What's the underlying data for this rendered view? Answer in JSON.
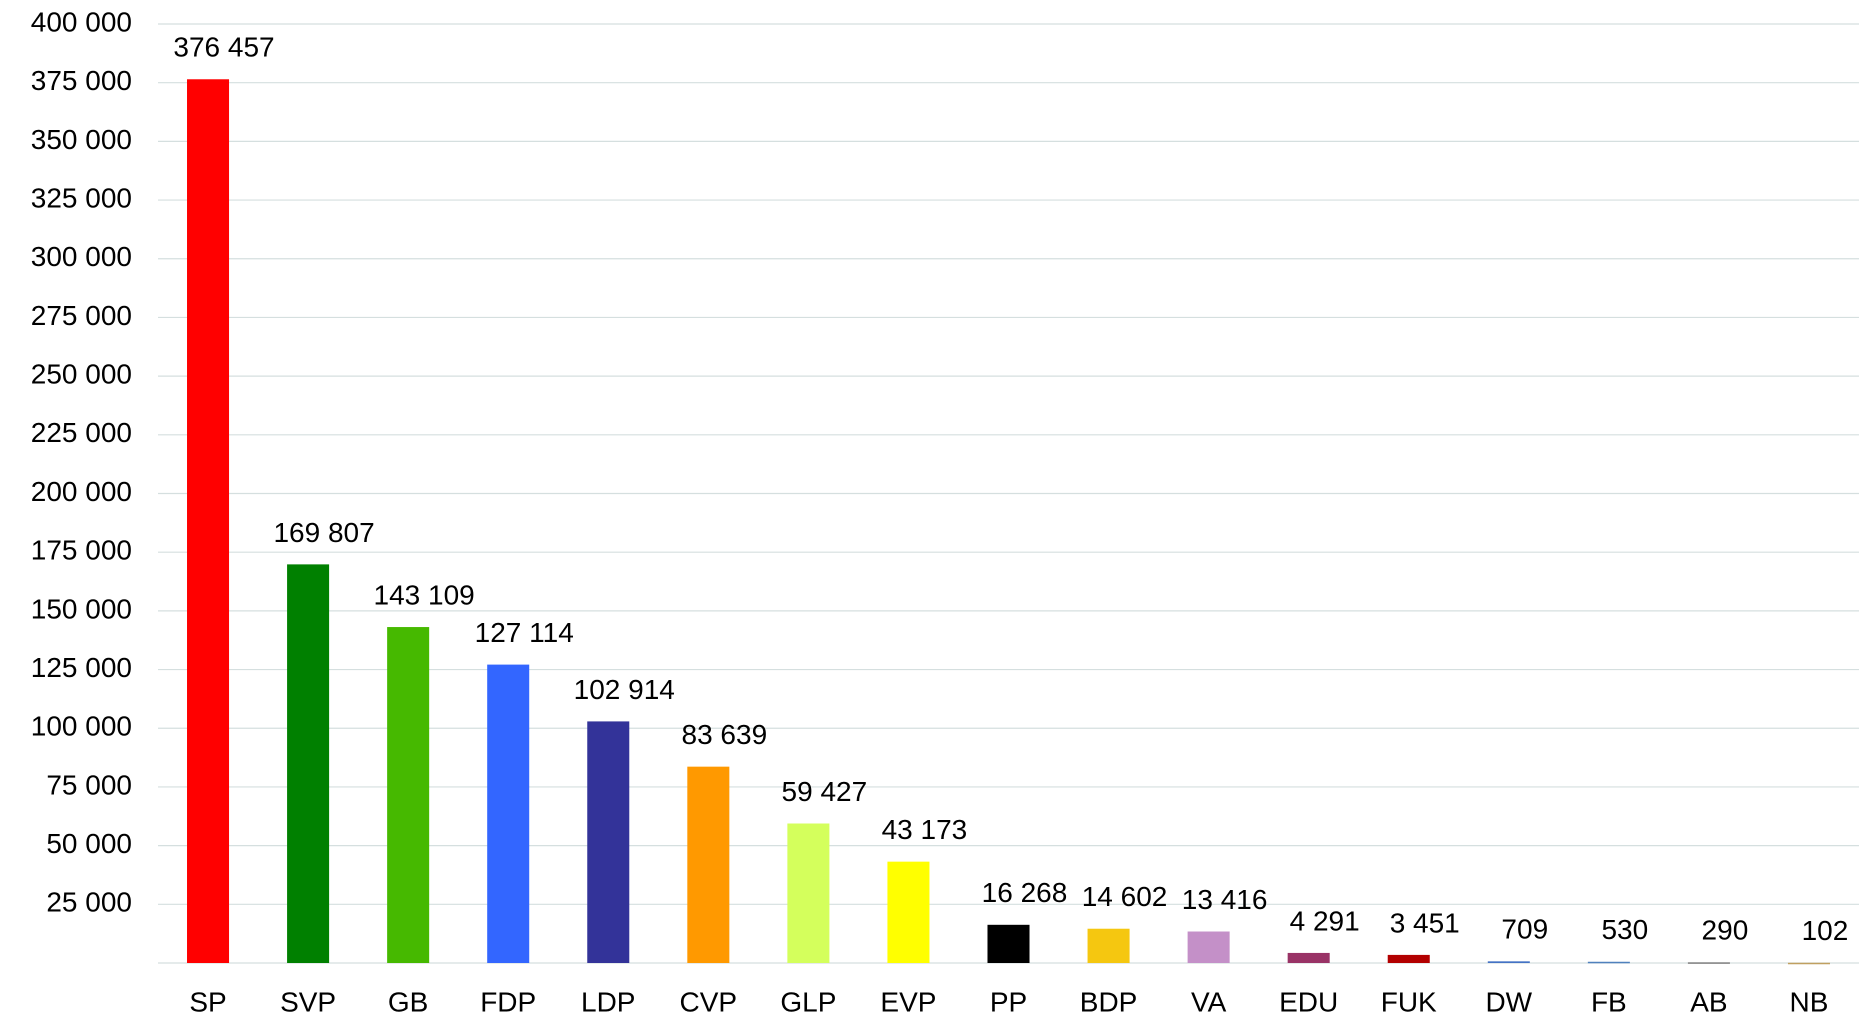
{
  "chart_data": {
    "type": "bar",
    "categories": [
      "SP",
      "SVP",
      "GB",
      "FDP",
      "LDP",
      "CVP",
      "GLP",
      "EVP",
      "PP",
      "BDP",
      "VA",
      "EDU",
      "FUK",
      "DW",
      "FB",
      "AB",
      "NB"
    ],
    "values": [
      376457,
      169807,
      143109,
      127114,
      102914,
      83639,
      59427,
      43173,
      16268,
      14602,
      13416,
      4291,
      3451,
      709,
      530,
      290,
      102
    ],
    "value_labels": [
      "376 457",
      "169 807",
      "143 109",
      "127 114",
      "102 914",
      "83 639",
      "59 427",
      "43 173",
      "16 268",
      "14 602",
      "13 416",
      "4 291",
      "3 451",
      "709",
      "530",
      "290",
      "102"
    ],
    "colors": [
      "#ff0000",
      "#008000",
      "#46b900",
      "#3366ff",
      "#333399",
      "#ff9900",
      "#d4ff5c",
      "#ffff00",
      "#000000",
      "#f5c710",
      "#c490c8",
      "#993366",
      "#b30000",
      "#4472c4",
      "#4f81bd",
      "#7f7f7f",
      "#c0a060"
    ],
    "ylim": [
      0,
      400000
    ],
    "yticks": [
      {
        "value": 25000,
        "label": "25 000"
      },
      {
        "value": 50000,
        "label": "50 000"
      },
      {
        "value": 75000,
        "label": "75 000"
      },
      {
        "value": 100000,
        "label": "100 000"
      },
      {
        "value": 125000,
        "label": "125 000"
      },
      {
        "value": 150000,
        "label": "150 000"
      },
      {
        "value": 175000,
        "label": "175 000"
      },
      {
        "value": 200000,
        "label": "200 000"
      },
      {
        "value": 225000,
        "label": "225 000"
      },
      {
        "value": 250000,
        "label": "250 000"
      },
      {
        "value": 275000,
        "label": "275 000"
      },
      {
        "value": 300000,
        "label": "300 000"
      },
      {
        "value": 325000,
        "label": "325 000"
      },
      {
        "value": 350000,
        "label": "350 000"
      },
      {
        "value": 375000,
        "label": "375 000"
      },
      {
        "value": 400000,
        "label": "400 000"
      }
    ],
    "grid": true
  }
}
